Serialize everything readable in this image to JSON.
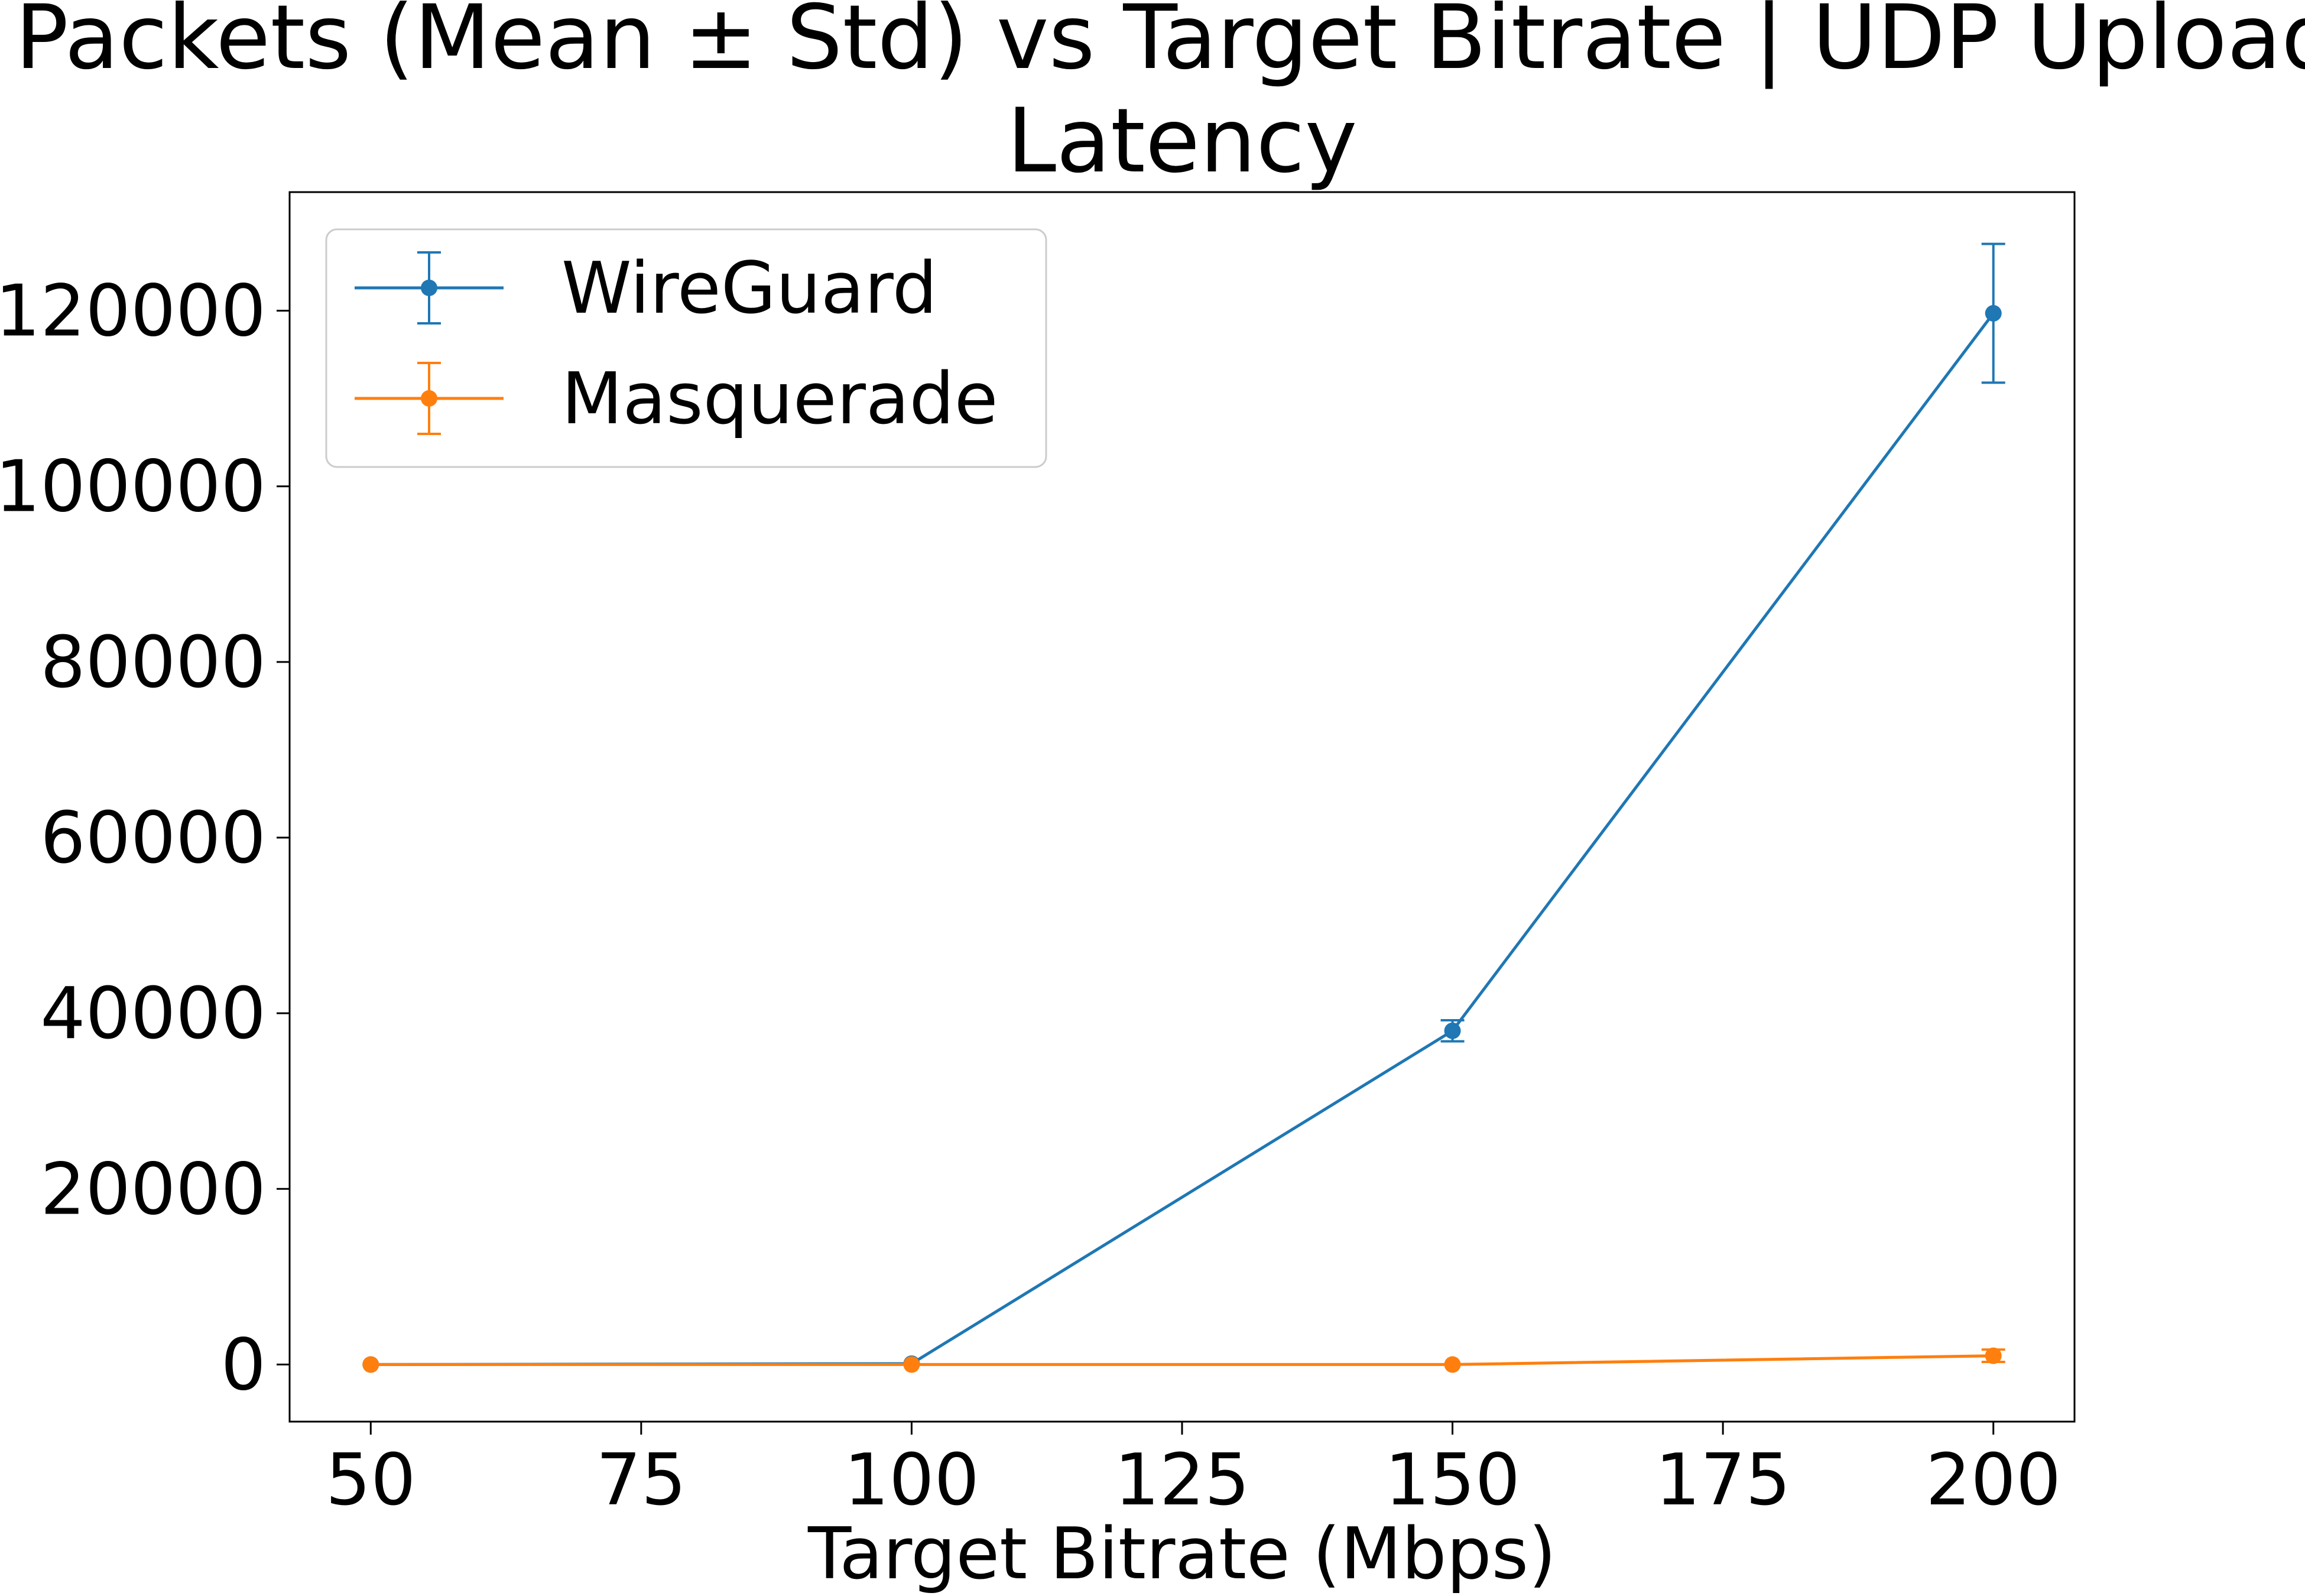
{
  "chart_data": {
    "type": "line",
    "title_line1": "Lost Packets (Mean ± Std) vs Target Bitrate | UDP Upload Loss",
    "title_line2": "Latency",
    "xlabel": "Target Bitrate (Mbps)",
    "ylabel": "",
    "x": [
      50,
      100,
      150,
      200
    ],
    "xlim": [
      42.5,
      207.5
    ],
    "ylim": [
      -6500,
      133500
    ],
    "xticks": [
      "50",
      "75",
      "100",
      "125",
      "150",
      "175",
      "200"
    ],
    "yticks": [
      "0",
      "20000",
      "40000",
      "60000",
      "80000",
      "100000",
      "120000"
    ],
    "grid": false,
    "legend_position": "upper left",
    "series": [
      {
        "name": "WireGuard",
        "color": "#1f77b4",
        "values": [
          0,
          100,
          38000,
          119700
        ],
        "std": [
          0,
          0,
          1200,
          7900
        ]
      },
      {
        "name": "Masquerade",
        "color": "#ff7f0e",
        "values": [
          0,
          0,
          0,
          1000
        ],
        "std": [
          0,
          0,
          0,
          700
        ]
      }
    ]
  }
}
